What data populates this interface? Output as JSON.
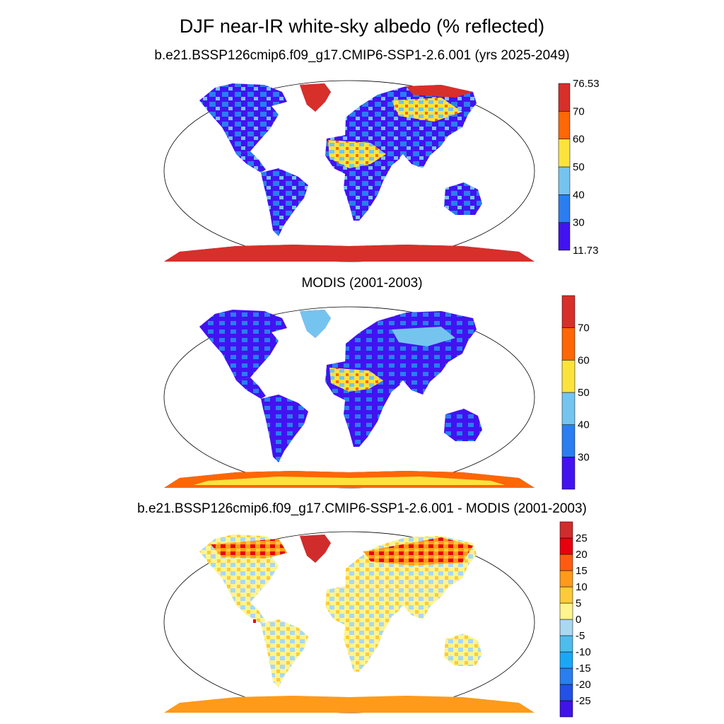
{
  "title": "DJF near-IR white-sky albedo (% reflected)",
  "panels": [
    {
      "name": "model",
      "subtitle": "b.e21.BSSP126cmip6.f09_g17.CMIP6-SSP1-2.6.001 (yrs 2025-2049)",
      "colorbar": {
        "colors": [
          "#4213f0",
          "#2a7ef0",
          "#75c4f0",
          "#fce33c",
          "#ff6606",
          "#d72f2a"
        ],
        "labels": [
          "76.53",
          "70",
          "60",
          "50",
          "40",
          "30",
          "11.73"
        ]
      }
    },
    {
      "name": "obs",
      "subtitle": "MODIS (2001-2003)",
      "colorbar": {
        "colors": [
          "#4213f0",
          "#2a7ef0",
          "#75c4f0",
          "#fce33c",
          "#ff6606",
          "#d72f2a"
        ],
        "labels": [
          "70",
          "60",
          "50",
          "40",
          "30"
        ]
      }
    },
    {
      "name": "diff",
      "subtitle": "b.e21.BSSP126cmip6.f09_g17.CMIP6-SSP1-2.6.001 - MODIS (2001-2003)",
      "colorbar": {
        "colors": [
          "#4013e8",
          "#2350e6",
          "#2a7ef0",
          "#1aa8f5",
          "#4fbcee",
          "#aad8f0",
          "#fff48e",
          "#fdcb3a",
          "#ff9a1a",
          "#ff5b10",
          "#e8000e",
          "#d02c2c"
        ],
        "labels": [
          "25",
          "20",
          "15",
          "10",
          "5",
          "0",
          "-5",
          "-10",
          "-15",
          "-20",
          "-25"
        ]
      }
    }
  ]
}
